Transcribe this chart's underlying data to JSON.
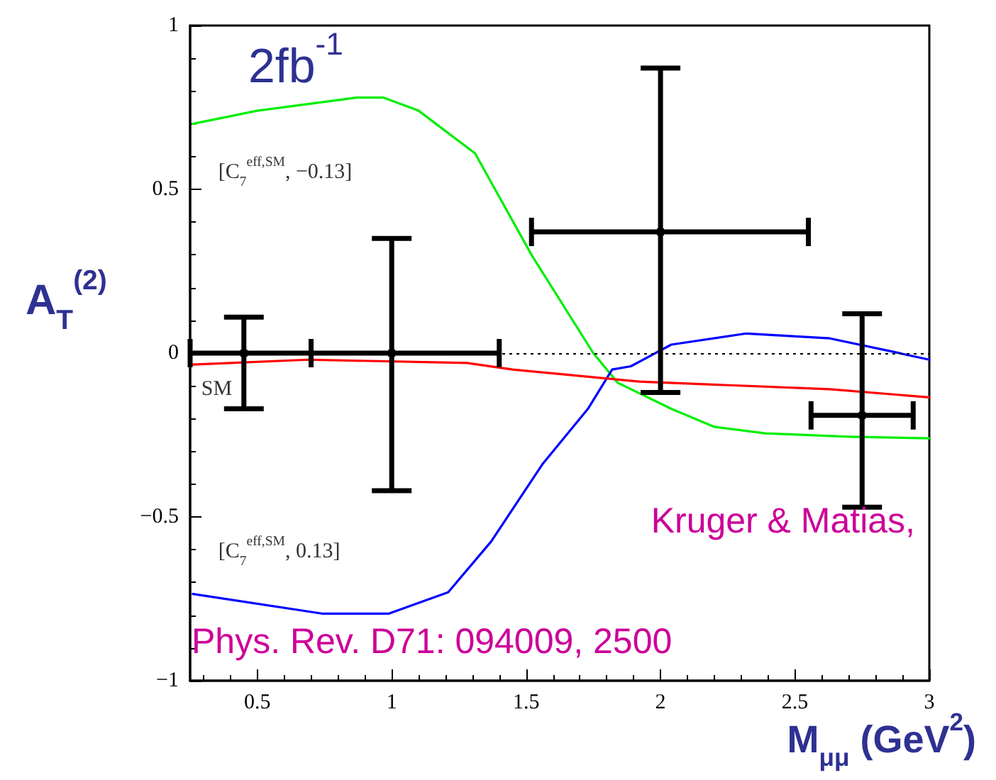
{
  "chart_data": {
    "type": "line",
    "xlabel": "M$_{μμ}$ (GeV$^{2}$)",
    "ylabel": "A$_{T}$$^{(2)}$",
    "xlim": [
      0.25,
      3
    ],
    "xticks": [
      0.5,
      1,
      1.5,
      2,
      2.5,
      3
    ],
    "ylim": [
      -1,
      1
    ],
    "yticks": [
      {
        "value": -1,
        "label": "−1"
      },
      {
        "value": -0.5,
        "label": "−0.5"
      },
      0,
      0.5,
      1
    ],
    "line_style": "solid",
    "series": [
      {
        "name": "[C$_{7}$$^{eff,SM}$, −0.13]",
        "color": "#00ee00",
        "x": [
          0.26,
          0.5,
          0.87,
          0.97,
          1.1,
          1.31,
          1.52,
          1.75,
          1.84,
          2.04,
          2.2,
          2.39,
          2.7,
          3.0
        ],
        "values": [
          0.7,
          0.74,
          0.78,
          0.78,
          0.74,
          0.61,
          0.3,
          0.0,
          -0.09,
          -0.17,
          -0.225,
          -0.245,
          -0.255,
          -0.26
        ]
      },
      {
        "name": "[C$_{7}$$^{eff,SM}$, 0.13]",
        "color": "#0000ff",
        "x": [
          0.26,
          0.74,
          0.99,
          1.21,
          1.37,
          1.56,
          1.73,
          1.82,
          1.89,
          2.04,
          2.32,
          2.63,
          2.86,
          3.0
        ],
        "values": [
          -0.735,
          -0.795,
          -0.795,
          -0.73,
          -0.575,
          -0.34,
          -0.17,
          -0.05,
          -0.04,
          0.026,
          0.06,
          0.045,
          0.005,
          -0.02
        ]
      },
      {
        "name": "SM",
        "color": "#ff0000",
        "x": [
          0.26,
          0.69,
          1.28,
          1.45,
          1.92,
          2.63,
          3.0
        ],
        "values": [
          -0.035,
          -0.02,
          -0.03,
          -0.05,
          -0.087,
          -0.11,
          -0.135
        ]
      },
      {
        "type": "scatter",
        "color": "#000000",
        "x": [
          0.45,
          1.0,
          2.0,
          2.75
        ],
        "values": [
          0,
          0,
          0.37,
          -0.19
        ],
        "errors": [
          [
            -0.17,
            0.11
          ],
          [
            -0.42,
            0.35
          ],
          [
            -0.12,
            0.87
          ],
          [
            -0.47,
            0.12
          ]
        ],
        "xerrors": [
          [
            0.25,
            0.7
          ],
          [
            0.7,
            1.4
          ],
          [
            1.52,
            2.55
          ],
          [
            2.56,
            2.94
          ]
        ]
      }
    ],
    "ref_lines": [
      {
        "axis": "y",
        "value": 0,
        "color": "#000000",
        "line_style": "dotted"
      }
    ],
    "annotations": [
      "2fb$^{-1}$",
      "Kruger & Matias,",
      "Phys. Rev. D71: 094009, 2500"
    ]
  }
}
